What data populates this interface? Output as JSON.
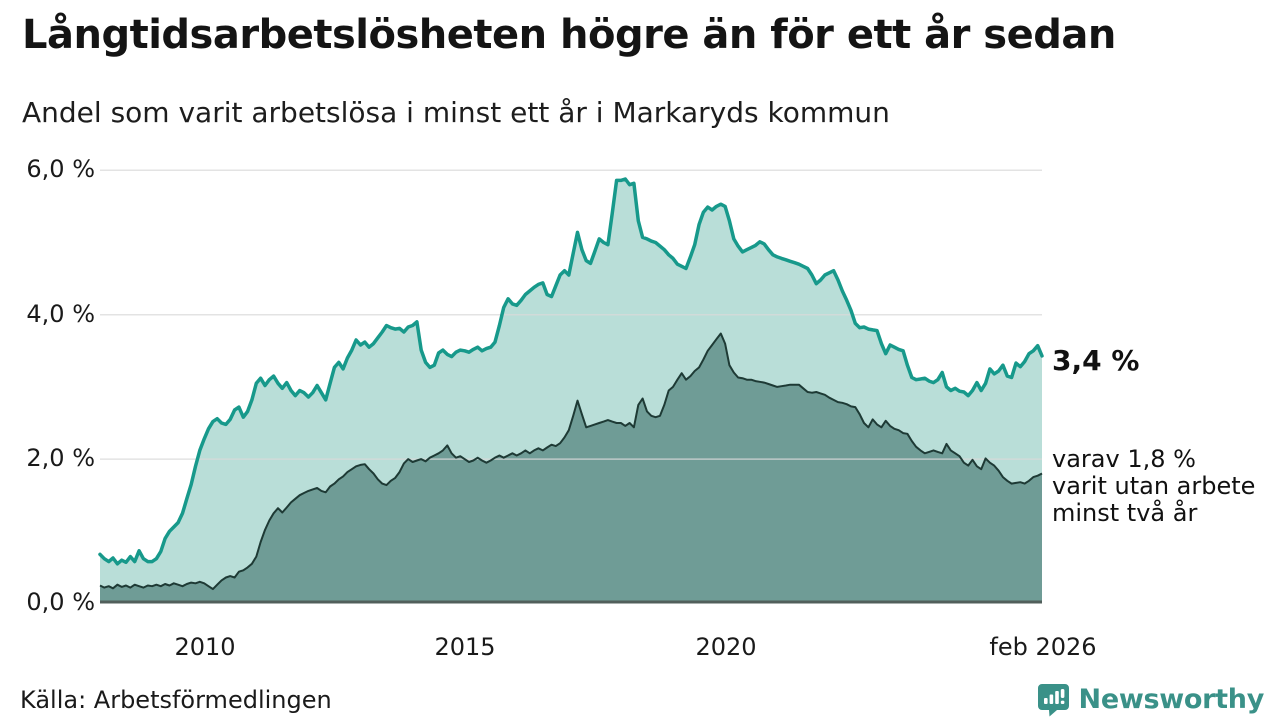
{
  "header": {
    "title": "Långtidsarbetslösheten högre än för ett år sedan",
    "subtitle": "Andel som varit arbetslösa i minst ett år i Markaryds kommun"
  },
  "annotations": {
    "latest_total": "3,4 %",
    "secondary_line1": "varav 1,8 %",
    "secondary_line2": "varit utan arbete",
    "secondary_line3": "minst två år"
  },
  "footer": {
    "source": "Källa: Arbetsförmedlingen",
    "logo_text": "Newsworthy"
  },
  "colors": {
    "line_1yr": "#17998b",
    "fill_1yr": "#b9ded8",
    "line_2yr": "#1e3a35",
    "fill_2yr": "#6f9c96",
    "gridline": "#d9d9d9",
    "baseline": "#515f5b",
    "logo": "#3a9188",
    "text": "#1a1a1a"
  },
  "chart_data": {
    "type": "area",
    "title": "Långtidsarbetslösheten högre än för ett år sedan",
    "subtitle": "Andel som varit arbetslösa i minst ett år i Markaryds kommun",
    "frequency": "monthly",
    "x_start": "2008-01",
    "x_end": "2026-02",
    "xlabel": "",
    "ylabel": "",
    "y_unit": "%",
    "ylim": [
      0,
      6.3
    ],
    "grid": true,
    "legend": false,
    "x_tick_labels": [
      "2010",
      "2015",
      "2020",
      "feb 2026"
    ],
    "y_tick_labels": [
      "6,0 %",
      "4,0 %",
      "2,0 %",
      "0,0 %"
    ],
    "y_tick_values": [
      6.0,
      4.0,
      2.0,
      0.0
    ],
    "series": [
      {
        "name": "Andel arbetslösa minst ett år",
        "last_value_label": "3,4 %",
        "last_value": 3.4,
        "values": [
          0.68,
          0.62,
          0.58,
          0.63,
          0.55,
          0.6,
          0.57,
          0.65,
          0.58,
          0.73,
          0.62,
          0.58,
          0.58,
          0.62,
          0.72,
          0.9,
          1.0,
          1.06,
          1.12,
          1.25,
          1.45,
          1.65,
          1.9,
          2.12,
          2.28,
          2.42,
          2.52,
          2.56,
          2.5,
          2.48,
          2.55,
          2.68,
          2.72,
          2.58,
          2.66,
          2.82,
          3.05,
          3.12,
          3.02,
          3.1,
          3.15,
          3.05,
          2.98,
          3.06,
          2.95,
          2.88,
          2.95,
          2.92,
          2.86,
          2.92,
          3.02,
          2.92,
          2.82,
          3.05,
          3.27,
          3.34,
          3.25,
          3.4,
          3.51,
          3.65,
          3.58,
          3.62,
          3.55,
          3.6,
          3.68,
          3.76,
          3.85,
          3.82,
          3.8,
          3.81,
          3.76,
          3.83,
          3.85,
          3.9,
          3.51,
          3.34,
          3.27,
          3.3,
          3.47,
          3.51,
          3.45,
          3.42,
          3.48,
          3.51,
          3.5,
          3.48,
          3.52,
          3.55,
          3.5,
          3.53,
          3.55,
          3.62,
          3.85,
          4.1,
          4.22,
          4.15,
          4.13,
          4.2,
          4.28,
          4.33,
          4.38,
          4.42,
          4.44,
          4.28,
          4.25,
          4.4,
          4.55,
          4.61,
          4.55,
          4.85,
          5.14,
          4.9,
          4.75,
          4.71,
          4.88,
          5.05,
          5.0,
          4.97,
          5.4,
          5.86,
          5.86,
          5.88,
          5.8,
          5.82,
          5.3,
          5.07,
          5.05,
          5.02,
          5.0,
          4.95,
          4.9,
          4.83,
          4.78,
          4.7,
          4.67,
          4.64,
          4.8,
          4.97,
          5.25,
          5.42,
          5.49,
          5.45,
          5.5,
          5.53,
          5.5,
          5.3,
          5.05,
          4.95,
          4.87,
          4.9,
          4.93,
          4.96,
          5.01,
          4.98,
          4.9,
          4.83,
          4.8,
          4.78,
          4.76,
          4.74,
          4.72,
          4.7,
          4.67,
          4.64,
          4.55,
          4.43,
          4.48,
          4.55,
          4.58,
          4.61,
          4.48,
          4.33,
          4.2,
          4.06,
          3.88,
          3.82,
          3.83,
          3.8,
          3.79,
          3.78,
          3.6,
          3.46,
          3.58,
          3.55,
          3.52,
          3.5,
          3.3,
          3.13,
          3.1,
          3.11,
          3.12,
          3.08,
          3.06,
          3.1,
          3.2,
          3.0,
          2.95,
          2.98,
          2.94,
          2.93,
          2.88,
          2.95,
          3.06,
          2.95,
          3.05,
          3.25,
          3.18,
          3.22,
          3.3,
          3.15,
          3.13,
          3.33,
          3.28,
          3.35,
          3.46,
          3.5,
          3.57,
          3.43
        ]
      },
      {
        "name": "varav utan arbete minst två år",
        "last_value_label": "1,8 %",
        "last_value": 1.8,
        "values": [
          0.25,
          0.22,
          0.24,
          0.21,
          0.26,
          0.23,
          0.25,
          0.22,
          0.26,
          0.24,
          0.22,
          0.25,
          0.24,
          0.26,
          0.24,
          0.27,
          0.25,
          0.28,
          0.26,
          0.24,
          0.27,
          0.29,
          0.28,
          0.3,
          0.28,
          0.24,
          0.2,
          0.26,
          0.32,
          0.36,
          0.38,
          0.36,
          0.44,
          0.46,
          0.5,
          0.55,
          0.65,
          0.85,
          1.02,
          1.15,
          1.25,
          1.32,
          1.26,
          1.33,
          1.4,
          1.45,
          1.5,
          1.53,
          1.56,
          1.58,
          1.6,
          1.56,
          1.54,
          1.62,
          1.66,
          1.72,
          1.76,
          1.82,
          1.86,
          1.9,
          1.92,
          1.93,
          1.86,
          1.8,
          1.72,
          1.66,
          1.64,
          1.7,
          1.74,
          1.82,
          1.94,
          2.0,
          1.96,
          1.98,
          2.0,
          1.97,
          2.02,
          2.05,
          2.08,
          2.12,
          2.19,
          2.08,
          2.02,
          2.04,
          2.0,
          1.96,
          1.98,
          2.02,
          1.98,
          1.95,
          1.98,
          2.02,
          2.05,
          2.02,
          2.05,
          2.08,
          2.05,
          2.08,
          2.12,
          2.08,
          2.12,
          2.15,
          2.12,
          2.16,
          2.2,
          2.18,
          2.22,
          2.3,
          2.4,
          2.6,
          2.81,
          2.62,
          2.44,
          2.46,
          2.48,
          2.5,
          2.52,
          2.54,
          2.52,
          2.5,
          2.5,
          2.46,
          2.5,
          2.44,
          2.75,
          2.84,
          2.66,
          2.6,
          2.58,
          2.6,
          2.75,
          2.95,
          3.0,
          3.1,
          3.19,
          3.1,
          3.15,
          3.22,
          3.27,
          3.38,
          3.5,
          3.58,
          3.66,
          3.74,
          3.6,
          3.3,
          3.2,
          3.13,
          3.12,
          3.1,
          3.1,
          3.08,
          3.07,
          3.06,
          3.04,
          3.02,
          3.0,
          3.01,
          3.02,
          3.03,
          3.03,
          3.03,
          2.98,
          2.93,
          2.92,
          2.93,
          2.91,
          2.89,
          2.85,
          2.82,
          2.79,
          2.78,
          2.76,
          2.73,
          2.72,
          2.62,
          2.5,
          2.44,
          2.55,
          2.48,
          2.44,
          2.53,
          2.46,
          2.42,
          2.4,
          2.36,
          2.35,
          2.25,
          2.17,
          2.12,
          2.08,
          2.1,
          2.12,
          2.1,
          2.08,
          2.21,
          2.12,
          2.08,
          2.04,
          1.95,
          1.91,
          1.99,
          1.9,
          1.86,
          2.01,
          1.95,
          1.91,
          1.84,
          1.75,
          1.7,
          1.66,
          1.67,
          1.68,
          1.66,
          1.7,
          1.75,
          1.77,
          1.8
        ]
      }
    ]
  }
}
